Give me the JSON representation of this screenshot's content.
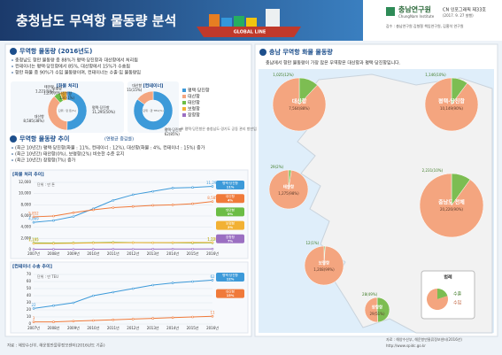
{
  "header": {
    "title": "충청남도 무역항 물동량 분석",
    "ship_label": "GLOBAL LINE",
    "org": "충남연구원",
    "org_en": "ChungNam Institute",
    "issue": "CN 인포그래픽 제33호",
    "date": "(2017. 9. 27 발행)",
    "review": "감수 : 충남연구원 김형철 책임연구원, 김홍석 연구원"
  },
  "section1": {
    "title": "무역항 물동량 (2016년도)",
    "bullets": [
      "충청남도 항만 물동량 중 88%가 평택·당진항과 대산항에서 처리됨",
      "컨테이너는 평택·당진항에서 85%, 대산항에서 15%가 수송됨",
      "항만 화물 중 90%가 수입 물동량이며, 컨테이너는 수출·입 물동량임"
    ],
    "note": "※ 평택·당진항은 충청남도·경기도 공동 관리 항만임"
  },
  "section2": {
    "title": "무역항 물동량 추이",
    "title_sub": "(연평균 증감률)",
    "bullets": [
      "(최근 10년간) 평택·당진항(화물 : 11%, 컨테이너 : 12%), 대산항(화물 : 4%, 컨테이너 : 15%) 증가",
      "(최근 10년간) 태안항(0%), 보령항(2%) 비슷한 수준 유지",
      "(최근 10년간) 장항항(7%) 증가"
    ]
  },
  "map_section": {
    "title": "충남 무역항 화물 물동량",
    "subtitle": "충남에서 항만 물동량이 가장 많은 무역항은 대산항과 평택·당진항입니다.",
    "source": "자료 : 해양수산부, 해운항만물류정보센터(2016년)",
    "url": "http://www.spidc.go.kr"
  },
  "source": "자료 : 해양수산부, 해운항만물류정보센터(2016년도 기준)",
  "chart_data": [
    {
      "type": "donut",
      "title": "[화물 처리]",
      "unit": "단위 : 만 톤(%)",
      "categories": [
        "평택·당진항",
        "대산항",
        "태안항",
        "보령항",
        "장항항"
      ],
      "values": [
        11295,
        8585,
        1221,
        1290,
        130
      ],
      "value_labels": [
        "11,295(50%)",
        "8,585(38%)",
        "1,221(5%)",
        "1,290(6%)",
        "130(1%)"
      ],
      "colors": [
        "#3d9ad9",
        "#f4a57f",
        "#6cbd45",
        "#f2b134",
        "#9b6fc2"
      ]
    },
    {
      "type": "donut",
      "title": "[컨테이너]",
      "unit": "단위 : 만 TEU(%)",
      "categories": [
        "평택·당진항",
        "대산항"
      ],
      "values": [
        62,
        11
      ],
      "value_labels": [
        "62(85%)",
        "11(15%)"
      ],
      "colors": [
        "#3d9ad9",
        "#f4a57f"
      ]
    },
    {
      "type": "line",
      "title": "[화물 처리 추이]",
      "unit": "단위 : 만 톤",
      "x": [
        "2007년",
        "2008년",
        "2009년",
        "2010년",
        "2011년",
        "2012년",
        "2013년",
        "2014년",
        "2015년",
        "2016년"
      ],
      "ylim": [
        0,
        12000
      ],
      "yticks": [
        0,
        {
          "value": 2000,
          "label": "2,000"
        },
        {
          "value": 4000,
          "label": "4,000"
        },
        {
          "value": 6000,
          "label": "6,000"
        },
        {
          "value": 8000,
          "label": "8,000"
        },
        {
          "value": 10000,
          "label": "10,000"
        },
        {
          "value": 12000,
          "label": "12,000"
        }
      ],
      "grid": true,
      "series": [
        {
          "name": "평택·당진항",
          "color": "#3d9ad9",
          "growth": "11%",
          "values": [
            4869,
            5200,
            5900,
            7300,
            8800,
            9800,
            10400,
            11000,
            11100,
            11295
          ],
          "value_labels": [
            "4,869",
            null,
            null,
            null,
            null,
            null,
            null,
            null,
            null,
            "11,295"
          ]
        },
        {
          "name": "대산항",
          "color": "#f07a3a",
          "growth": "4%",
          "values": [
            5852,
            6000,
            6600,
            7100,
            7500,
            7700,
            7900,
            8000,
            8200,
            8585
          ],
          "value_labels": [
            "5,852",
            null,
            null,
            null,
            null,
            null,
            null,
            null,
            null,
            "8,585"
          ]
        },
        {
          "name": "태안항",
          "color": "#6cbd45",
          "growth": "0%",
          "values": [
            1195,
            1180,
            1210,
            1250,
            1300,
            1260,
            1240,
            1230,
            1210,
            1221
          ],
          "value_labels": [
            "1,195",
            null,
            null,
            null,
            null,
            null,
            null,
            null,
            null,
            "1,221"
          ]
        },
        {
          "name": "보령항",
          "color": "#f2b134",
          "growth": "2%",
          "values": [
            1105,
            1100,
            1150,
            1200,
            1230,
            1250,
            1240,
            1260,
            1280,
            1290
          ],
          "value_labels": [
            "1,105",
            null,
            null,
            null,
            null,
            null,
            null,
            null,
            null,
            "1,290"
          ]
        },
        {
          "name": "장항항",
          "color": "#9b6fc2",
          "growth": "7%",
          "values": [
            70,
            75,
            80,
            86,
            92,
            98,
            105,
            112,
            120,
            130
          ],
          "value_labels": [
            null,
            null,
            null,
            null,
            null,
            null,
            null,
            null,
            null,
            null
          ]
        }
      ]
    },
    {
      "type": "line",
      "title": "[컨테이너 수송 추이]",
      "unit": "단위 : 만 TEU",
      "x": [
        "2007년",
        "2008년",
        "2009년",
        "2010년",
        "2011년",
        "2012년",
        "2013년",
        "2014년",
        "2015년",
        "2016년"
      ],
      "ylim": [
        0,
        70
      ],
      "yticks": [
        0,
        10,
        20,
        30,
        40,
        50,
        60,
        70
      ],
      "grid": true,
      "series": [
        {
          "name": "평택·당진항",
          "color": "#3d9ad9",
          "growth": "12%",
          "values": [
            22,
            26,
            30,
            40,
            45,
            50,
            55,
            58,
            60,
            62
          ],
          "value_labels": [
            "22",
            null,
            null,
            null,
            null,
            null,
            null,
            null,
            null,
            "62"
          ]
        },
        {
          "name": "대산항",
          "color": "#f07a3a",
          "growth": "15%",
          "values": [
            3,
            3,
            4,
            5,
            6,
            7,
            8,
            9,
            10,
            11
          ],
          "value_labels": [
            "3",
            null,
            null,
            null,
            null,
            null,
            null,
            null,
            null,
            "11"
          ]
        }
      ]
    },
    {
      "type": "pie-map",
      "legend_title": "범례",
      "categories": [
        "대산항",
        "평택·당진항",
        "태안항",
        "충남도 전체",
        "보령항",
        "장항항"
      ],
      "series": [
        {
          "name": "수출",
          "color": "#7dbd52",
          "values": [
            1025,
            1146,
            29,
            2231,
            12,
            28
          ],
          "value_labels": [
            "1,025(12%)",
            "1,146(10%)",
            "29(2%)",
            "2,231(10%)",
            "12(1%)",
            "28(49%)"
          ]
        },
        {
          "name": "수입",
          "color": "#f4a57f",
          "values": [
            7564,
            10149,
            1275,
            20226,
            1208,
            29
          ],
          "value_labels": [
            "7,564(88%)",
            "10,149(90%)",
            "1,275(98%)",
            "20,226(90%)",
            "1,208(99%)",
            "29(51%)"
          ]
        }
      ]
    }
  ]
}
